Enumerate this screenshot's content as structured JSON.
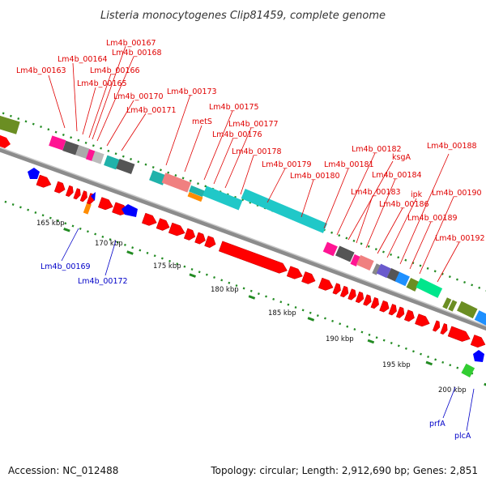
{
  "title": "Listeria monocytogenes Clip81459, complete genome",
  "footer": {
    "accession": "Accession: NC_012488",
    "topology": "Topology: circular; Length: 2,912,690 bp; Genes: 2,851"
  },
  "colors": {
    "cds_forward": "#ff0000",
    "cds_reverse": "#0000ff",
    "backbone": "#8c8c8c",
    "gc_tick": "#228b22",
    "label_red": "#e00000",
    "label_blue": "#0000c8"
  },
  "kbp_ticks": [
    "165 kbp",
    "170 kbp",
    "175 kbp",
    "180 kbp",
    "185 kbp",
    "190 kbp",
    "195 kbp",
    "200 kbp"
  ],
  "labels_forward": [
    "Lm4b_00163",
    "Lm4b_00164",
    "Lm4b_00165",
    "Lm4b_00166",
    "Lm4b_00167",
    "Lm4b_00168",
    "Lm4b_00170",
    "Lm4b_00171",
    "Lm4b_00173",
    "metS",
    "Lm4b_00175",
    "Lm4b_00176",
    "Lm4b_00177",
    "Lm4b_00178",
    "Lm4b_00179",
    "Lm4b_00180",
    "Lm4b_00181",
    "Lm4b_00182",
    "ksgA",
    "Lm4b_00183",
    "Lm4b_00184",
    "Lm4b_00186",
    "ipk",
    "Lm4b_00188",
    "Lm4b_00189",
    "Lm4b_00190",
    "Lm4b_00192"
  ],
  "labels_reverse": [
    "Lm4b_00169",
    "Lm4b_00172",
    "prfA",
    "plcA"
  ]
}
